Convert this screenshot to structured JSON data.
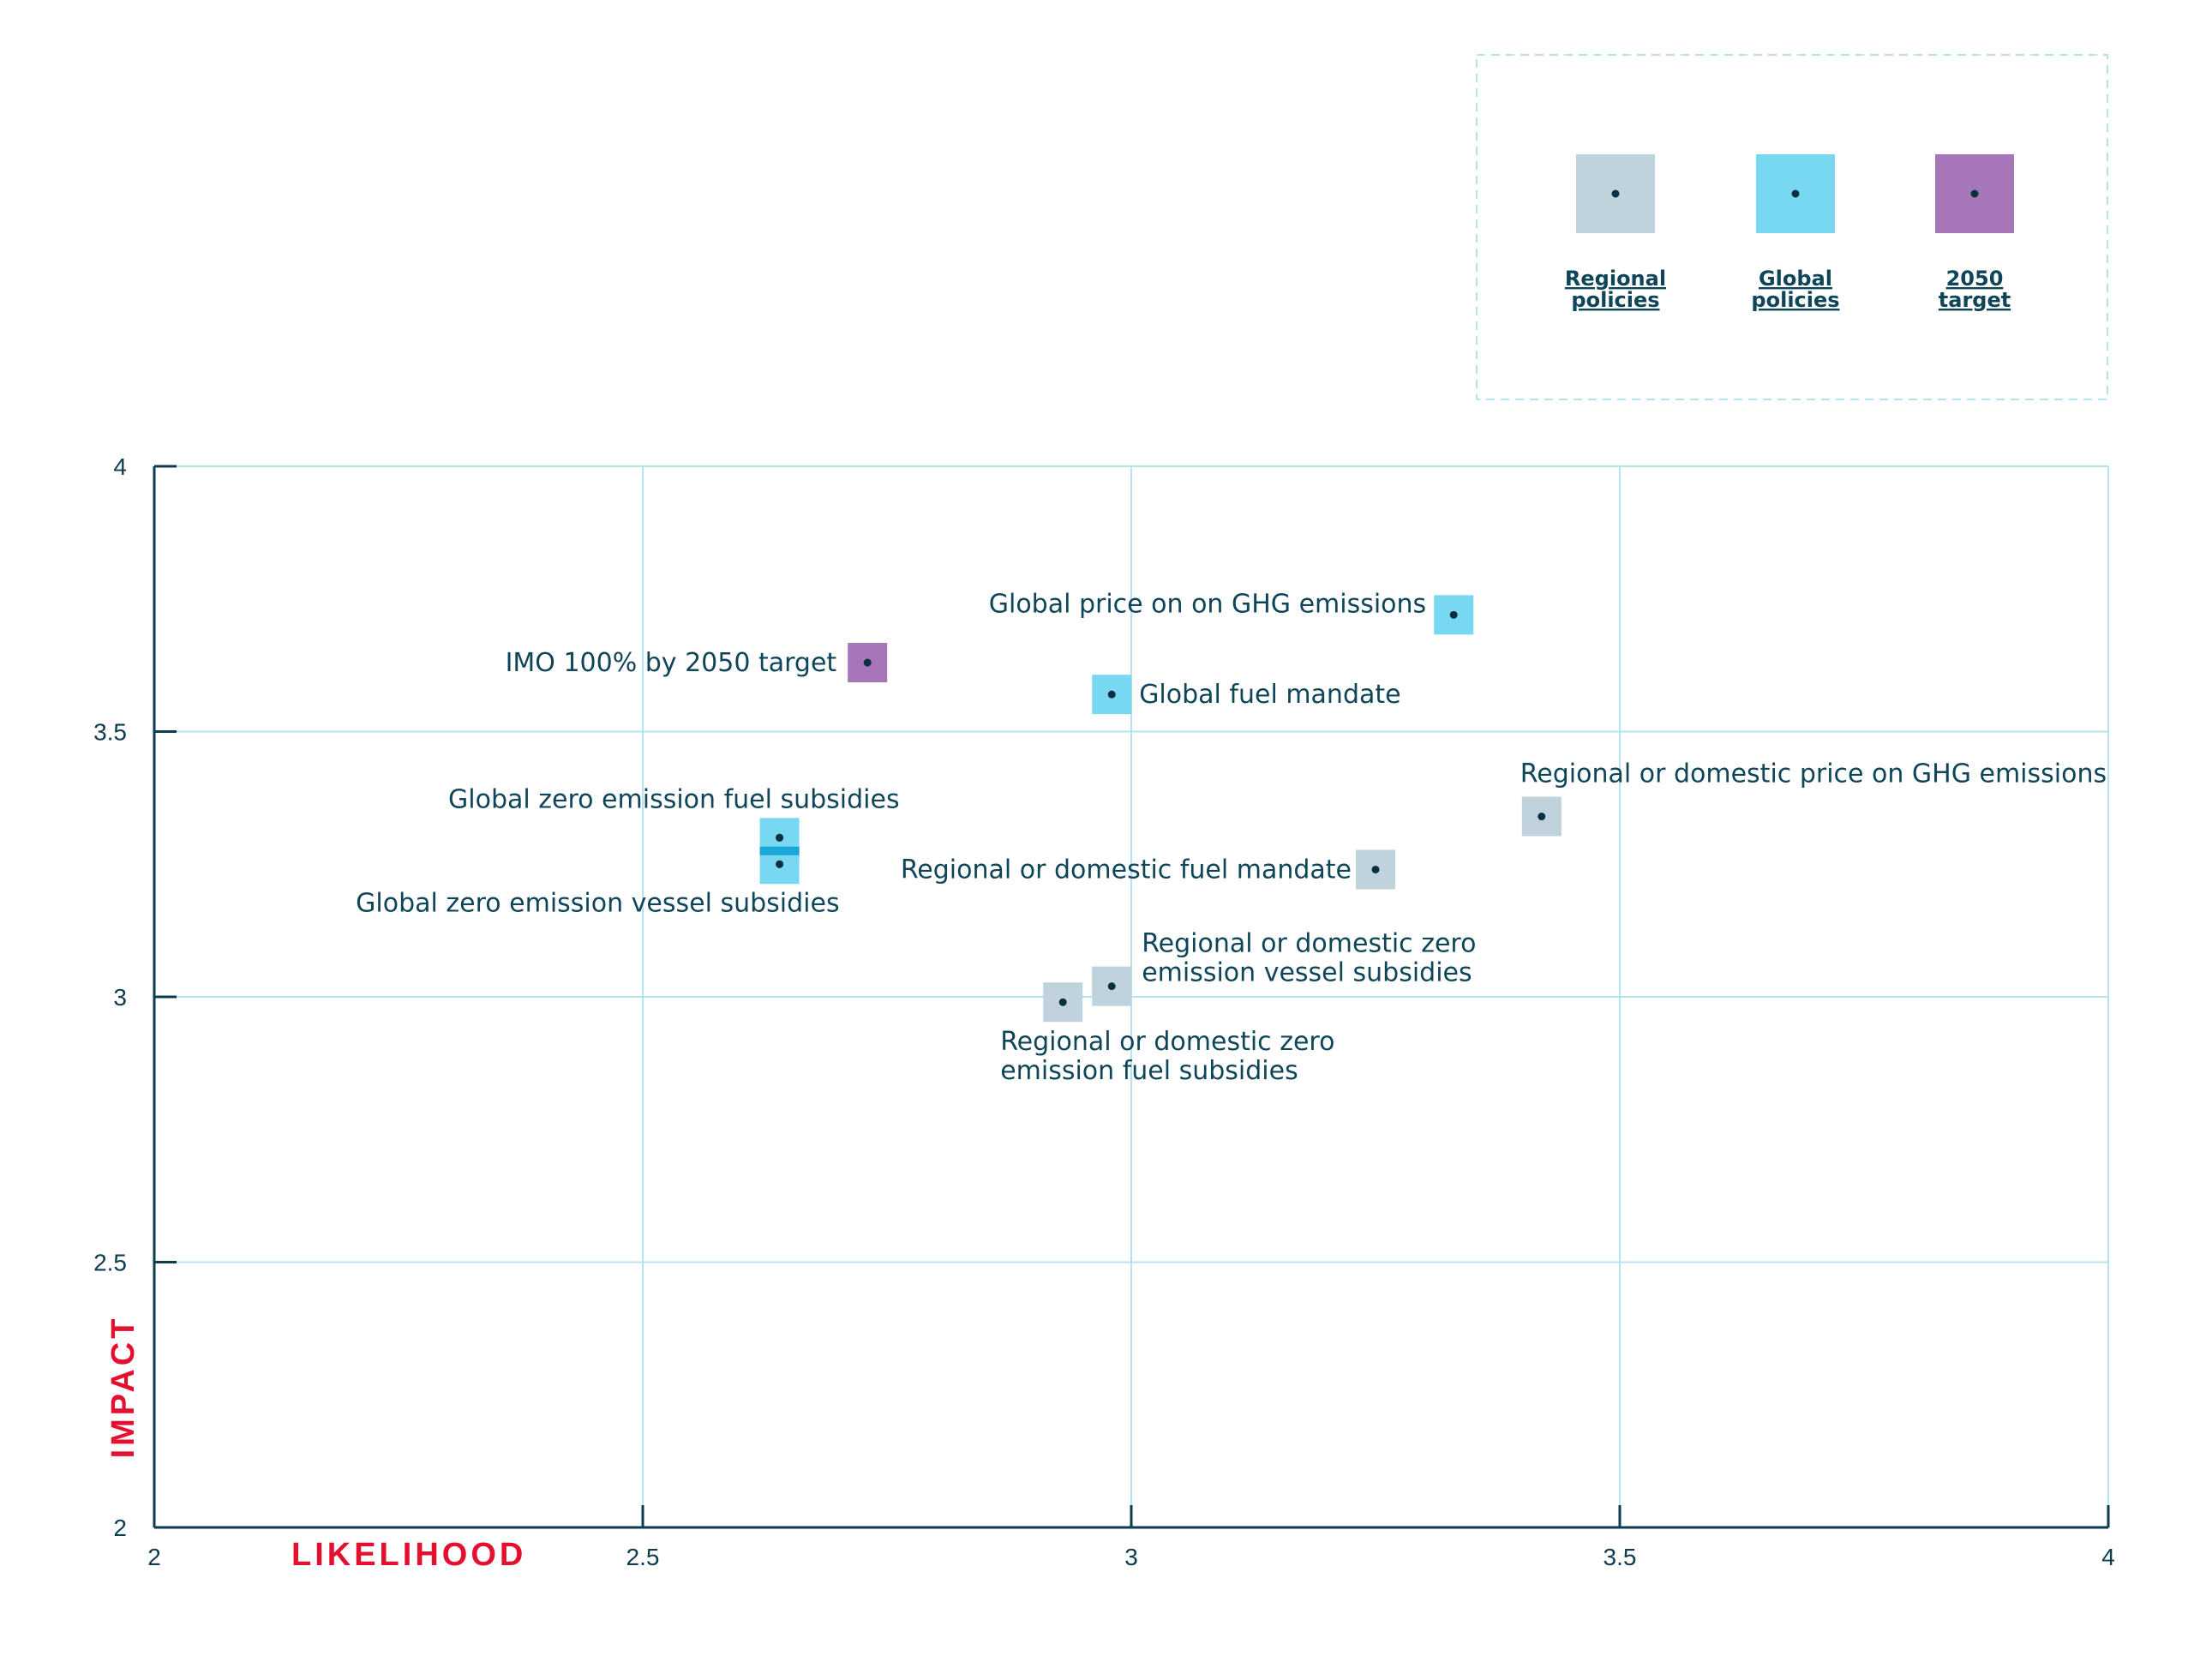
{
  "chart_data": {
    "type": "scatter",
    "xlabel": "LIKELIHOOD",
    "ylabel": "IMPACT",
    "xlim": [
      2,
      4
    ],
    "ylim": [
      2,
      4
    ],
    "xticks": [
      "2",
      "2.5",
      "3",
      "3.5",
      "4"
    ],
    "yticks": [
      "2",
      "2.5",
      "3",
      "3.5",
      "4"
    ],
    "grid": true,
    "legend_position": "top-right",
    "legend": [
      {
        "name": "Regional\npolicies",
        "color": "#c0d2dc"
      },
      {
        "name": "Global\npolicies",
        "color": "#79d8f1"
      },
      {
        "name": "2050\ntarget",
        "color": "#a676b8"
      }
    ],
    "series": [
      {
        "name": "Regional\npolicies",
        "color": "#c0d2dc",
        "points": [
          {
            "x": 3.42,
            "y": 3.34,
            "label": [
              "Regional or domestic price on GHG emissions"
            ]
          },
          {
            "x": 3.25,
            "y": 3.24,
            "label": [
              "Regional or domestic fuel mandate"
            ]
          },
          {
            "x": 2.98,
            "y": 3.02,
            "label": [
              "Regional or domestic zero",
              "emission vessel subsidies"
            ]
          },
          {
            "x": 2.93,
            "y": 2.99,
            "label": [
              "Regional or domestic zero",
              "emission fuel subsidies"
            ]
          }
        ]
      },
      {
        "name": "Global\npolicies",
        "color": "#79d8f1",
        "points": [
          {
            "x": 3.33,
            "y": 3.72,
            "label": [
              "Global price on on GHG emissions"
            ]
          },
          {
            "x": 2.98,
            "y": 3.57,
            "label": [
              "Global fuel mandate"
            ]
          },
          {
            "x": 2.64,
            "y": 3.3,
            "label": [
              "Global zero emission fuel subsidies"
            ]
          },
          {
            "x": 2.64,
            "y": 3.25,
            "label": [
              "Global zero emission vessel subsidies"
            ]
          }
        ]
      },
      {
        "name": "2050\ntarget",
        "color": "#a676b8",
        "points": [
          {
            "x": 2.73,
            "y": 3.63,
            "label": [
              "IMO 100% by 2050 target"
            ]
          }
        ]
      }
    ],
    "colors": {
      "axis": "#0d3b4f",
      "grid": "#b4e3ef",
      "dot": "#0a2f40",
      "overlap": "#1aa7d8",
      "title": "#e3112f",
      "text": "#0e4558"
    }
  }
}
